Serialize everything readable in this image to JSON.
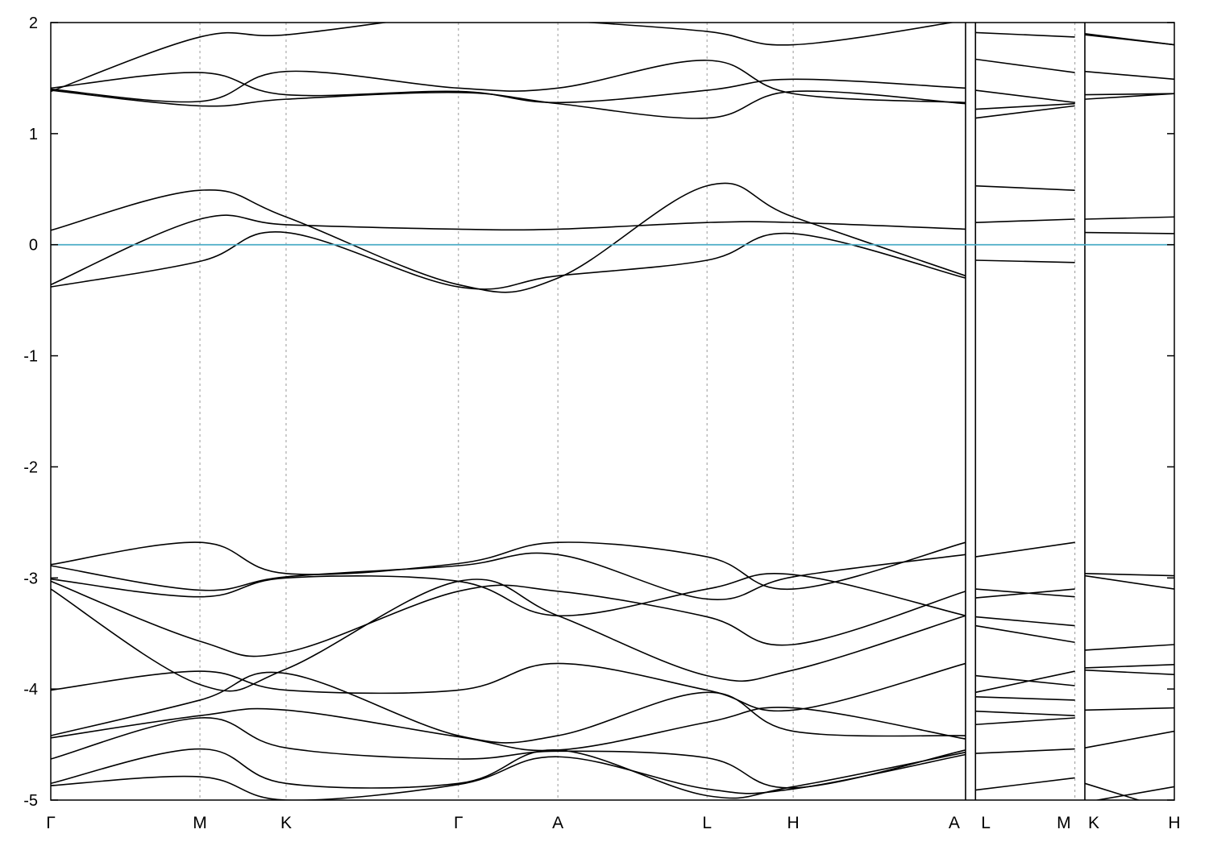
{
  "chart_data": {
    "type": "line",
    "title": "",
    "xlabel": "",
    "ylabel": "",
    "ylim": [
      -5,
      2
    ],
    "yticks": [
      -5,
      -4,
      -3,
      -2,
      -1,
      0,
      1,
      2
    ],
    "ytick_labels": [
      "-5",
      "-4",
      "-3",
      "-2",
      "-1",
      "0",
      "1",
      "2"
    ],
    "xlim": [
      0,
      3.39
    ],
    "kpoints": [
      {
        "label": "Γ",
        "x": 0.0
      },
      {
        "label": "M",
        "x": 0.45
      },
      {
        "label": "K",
        "x": 0.71
      },
      {
        "label": "Γ",
        "x": 1.23
      },
      {
        "label": "A",
        "x": 1.53
      },
      {
        "label": "L",
        "x": 1.98
      },
      {
        "label": "H",
        "x": 2.24
      },
      {
        "label": "A",
        "x": 2.76
      },
      {
        "label": "L",
        "x": 2.79
      },
      {
        "label": "M",
        "x": 3.09
      },
      {
        "label": "K",
        "x": 3.12
      },
      {
        "label": "H",
        "x": 3.39
      }
    ],
    "grid": "dashed vertical lines at k-points",
    "fermi_level": {
      "y": 0,
      "color": "#4bacc6"
    },
    "line_color": "#000000",
    "segments": [
      {
        "x": [
          0,
          0.45,
          0.71,
          1.23,
          1.53,
          1.98,
          2.24,
          2.76
        ],
        "bands": [
          [
            -0.38,
            -0.15,
            0.11,
            -0.38,
            -0.28,
            -0.14,
            0.1,
            -0.3
          ],
          [
            -0.36,
            0.23,
            0.18,
            0.14,
            0.14,
            0.2,
            0.2,
            0.14
          ],
          [
            0.13,
            0.49,
            0.25,
            -0.36,
            -0.3,
            0.53,
            0.25,
            -0.28
          ],
          [
            1.39,
            1.25,
            1.31,
            1.37,
            1.27,
            1.14,
            1.38,
            1.27
          ],
          [
            1.4,
            1.29,
            1.56,
            1.41,
            1.41,
            1.66,
            1.36,
            1.28
          ],
          [
            1.41,
            1.55,
            1.35,
            1.38,
            1.28,
            1.39,
            1.49,
            1.41
          ],
          [
            1.38,
            1.87,
            1.89,
            2.07,
            2.02,
            1.92,
            1.8,
            2.02
          ],
          [
            -2.89,
            -3.11,
            -2.99,
            -2.89,
            -2.79,
            -3.19,
            -2.99,
            -2.79
          ],
          [
            -2.88,
            -2.68,
            -2.96,
            -2.87,
            -2.68,
            -2.81,
            -3.1,
            -2.68
          ],
          [
            -3.01,
            -3.17,
            -3.0,
            -3.03,
            -3.34,
            -3.1,
            -2.97,
            -3.34
          ],
          [
            -3.03,
            -3.57,
            -3.67,
            -3.12,
            -3.12,
            -3.35,
            -3.6,
            -3.12
          ],
          [
            -3.1,
            -3.96,
            -3.82,
            -3.03,
            -3.34,
            -3.88,
            -3.83,
            -3.34
          ],
          [
            -4.01,
            -3.84,
            -4.01,
            -4.01,
            -3.77,
            -4.01,
            -4.19,
            -3.77
          ],
          [
            -4.42,
            -4.1,
            -3.86,
            -4.42,
            -4.42,
            -4.03,
            -4.38,
            -4.42
          ],
          [
            -4.44,
            -4.24,
            -4.19,
            -4.43,
            -4.55,
            -4.3,
            -4.17,
            -4.45
          ],
          [
            -4.63,
            -4.26,
            -4.53,
            -4.63,
            -4.56,
            -4.62,
            -4.89,
            -4.55
          ],
          [
            -4.85,
            -4.54,
            -4.85,
            -4.85,
            -4.55,
            -4.96,
            -4.88,
            -4.57
          ],
          [
            -4.87,
            -4.79,
            -5.0,
            -4.86,
            -4.61,
            -4.9,
            -4.9,
            -4.59
          ]
        ]
      },
      {
        "x": [
          2.79,
          3.09
        ],
        "bands": [
          [
            -0.14,
            -0.16
          ],
          [
            0.2,
            0.23
          ],
          [
            0.53,
            0.49
          ],
          [
            1.14,
            1.25
          ],
          [
            1.22,
            1.27
          ],
          [
            1.39,
            1.28
          ],
          [
            1.67,
            1.55
          ],
          [
            1.91,
            1.87
          ],
          [
            -2.81,
            -2.68
          ],
          [
            -3.1,
            -3.17
          ],
          [
            -3.18,
            -3.1
          ],
          [
            -3.35,
            -3.43
          ],
          [
            -3.43,
            -3.58
          ],
          [
            -3.88,
            -3.97
          ],
          [
            -4.03,
            -3.84
          ],
          [
            -4.07,
            -4.1
          ],
          [
            -4.2,
            -4.24
          ],
          [
            -4.32,
            -4.26
          ],
          [
            -4.58,
            -4.54
          ],
          [
            -4.91,
            -4.8
          ]
        ]
      },
      {
        "x": [
          3.12,
          3.39
        ],
        "bands": [
          [
            0.11,
            0.1
          ],
          [
            0.23,
            0.25
          ],
          [
            1.31,
            1.36
          ],
          [
            1.35,
            1.36
          ],
          [
            1.56,
            1.49
          ],
          [
            1.89,
            1.8
          ],
          [
            1.9,
            1.8
          ],
          [
            -2.96,
            -2.98
          ],
          [
            -2.98,
            -3.1
          ],
          [
            -3.65,
            -3.6
          ],
          [
            -3.81,
            -3.78
          ],
          [
            -3.83,
            -3.87
          ],
          [
            -4.19,
            -4.17
          ],
          [
            -4.53,
            -4.38
          ],
          [
            -4.85,
            -5.1
          ],
          [
            -5.02,
            -4.88
          ]
        ]
      }
    ]
  }
}
